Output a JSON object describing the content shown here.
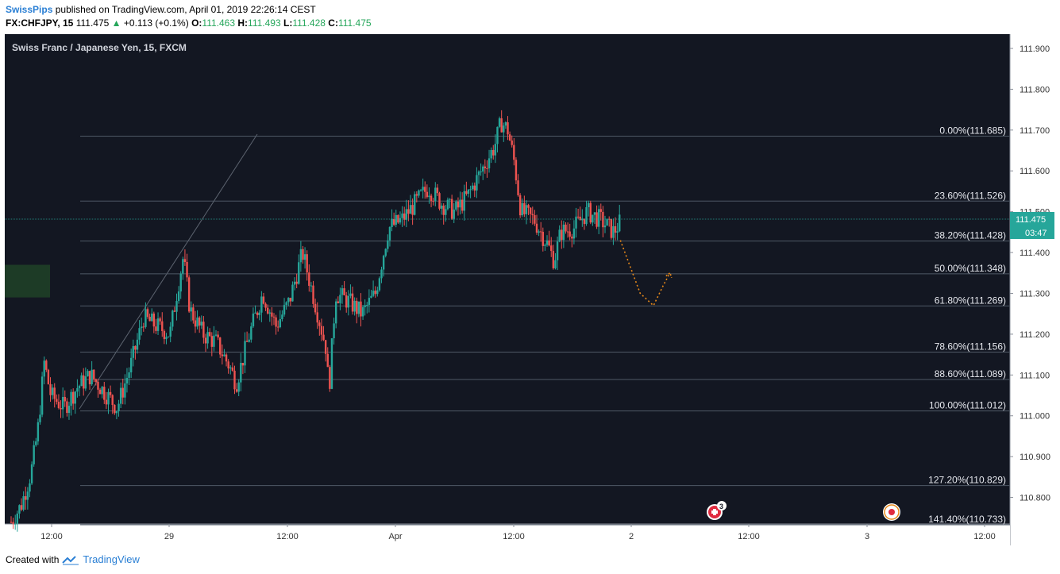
{
  "header": {
    "author": "SwissPips",
    "published_text": "published on TradingView.com, April 01, 2019 22:26:14 CEST",
    "symbol": "FX:CHFJPY, 15",
    "last": "111.475",
    "change_arrow": "▲",
    "change": "+0.113 (+0.1%)",
    "o_label": "O:",
    "o_value": "111.463",
    "h_label": "H:",
    "h_value": "111.493",
    "l_label": "L:",
    "l_value": "111.428",
    "c_label": "C:",
    "c_value": "111.475"
  },
  "chart_title": "Swiss Franc / Japanese Yen, 15, FXCM",
  "footer": {
    "created_with": "Created with",
    "brand": "TradingView"
  },
  "price_badge": {
    "price": "111.475",
    "countdown": "03:47"
  },
  "colors": {
    "background": "#131722",
    "up": "#26a69a",
    "down": "#ef5350",
    "fib_line": "#4f5966",
    "projection": "#e8891a",
    "badge": "#26a69a",
    "zone": "#1d3b26"
  },
  "chart_data": {
    "type": "candlestick",
    "title": "Swiss Franc / Japanese Yen, 15, FXCM",
    "ylim": [
      110.735,
      111.935
    ],
    "y_ticks": [
      "111.900",
      "111.800",
      "111.700",
      "111.600",
      "111.500",
      "111.400",
      "111.300",
      "111.200",
      "111.100",
      "111.000",
      "110.900",
      "110.800"
    ],
    "x_ticks": [
      "12:00",
      "29",
      "12:00",
      "Apr",
      "12:00",
      "2",
      "12:00",
      "3",
      "12:00"
    ],
    "fibonacci": [
      {
        "label": "0.00%(111.685)",
        "value": 111.685
      },
      {
        "label": "23.60%(111.526)",
        "value": 111.526
      },
      {
        "label": "38.20%(111.428)",
        "value": 111.428
      },
      {
        "label": "50.00%(111.348)",
        "value": 111.348
      },
      {
        "label": "61.80%(111.269)",
        "value": 111.269
      },
      {
        "label": "78.60%(111.156)",
        "value": 111.156
      },
      {
        "label": "88.60%(111.089)",
        "value": 111.089
      },
      {
        "label": "100.00%(111.012)",
        "value": 111.012
      },
      {
        "label": "127.20%(110.829)",
        "value": 110.829
      },
      {
        "label": "141.40%(110.733)",
        "value": 110.733
      }
    ],
    "price_path": [
      [
        0,
        110.74
      ],
      [
        3,
        110.78
      ],
      [
        6,
        110.86
      ],
      [
        8,
        110.96
      ],
      [
        10,
        111.13
      ],
      [
        12,
        111.05
      ],
      [
        16,
        111.02
      ],
      [
        20,
        111.07
      ],
      [
        24,
        111.1
      ],
      [
        28,
        111.06
      ],
      [
        32,
        111.02
      ],
      [
        36,
        111.12
      ],
      [
        40,
        111.24
      ],
      [
        44,
        111.22
      ],
      [
        48,
        111.2
      ],
      [
        50,
        111.3
      ],
      [
        52,
        111.39
      ],
      [
        54,
        111.26
      ],
      [
        58,
        111.2
      ],
      [
        62,
        111.18
      ],
      [
        66,
        111.12
      ],
      [
        68,
        111.08
      ],
      [
        72,
        111.2
      ],
      [
        76,
        111.3
      ],
      [
        80,
        111.22
      ],
      [
        84,
        111.28
      ],
      [
        88,
        111.4
      ],
      [
        92,
        111.27
      ],
      [
        95,
        111.17
      ],
      [
        96,
        111.06
      ],
      [
        98,
        111.3
      ],
      [
        102,
        111.28
      ],
      [
        106,
        111.25
      ],
      [
        110,
        111.3
      ],
      [
        112,
        111.38
      ],
      [
        114,
        111.46
      ],
      [
        118,
        111.48
      ],
      [
        122,
        111.52
      ],
      [
        126,
        111.56
      ],
      [
        130,
        111.52
      ],
      [
        134,
        111.5
      ],
      [
        138,
        111.54
      ],
      [
        142,
        111.6
      ],
      [
        146,
        111.66
      ],
      [
        148,
        111.72
      ],
      [
        150,
        111.7
      ],
      [
        152,
        111.62
      ],
      [
        154,
        111.5
      ],
      [
        158,
        111.48
      ],
      [
        162,
        111.42
      ],
      [
        164,
        111.38
      ],
      [
        166,
        111.45
      ],
      [
        170,
        111.46
      ],
      [
        174,
        111.5
      ],
      [
        178,
        111.48
      ],
      [
        182,
        111.45
      ],
      [
        184,
        111.475
      ]
    ],
    "projection_path": [
      [
        184,
        111.43
      ],
      [
        190,
        111.3
      ],
      [
        194,
        111.27
      ],
      [
        197,
        111.32
      ],
      [
        199,
        111.35
      ]
    ],
    "demand_zone": [
      111.29,
      111.37
    ],
    "markers": [
      {
        "type": "flag-event",
        "badge": "3"
      },
      {
        "type": "event-dot"
      }
    ]
  }
}
